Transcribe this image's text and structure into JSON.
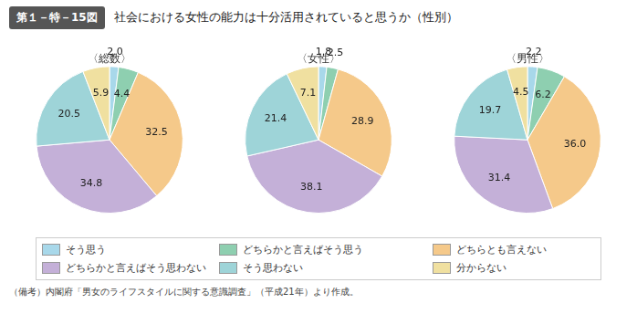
{
  "title": "第１－特－15図",
  "subtitle": "社会における女性の能力は十分活用されていると思うか（性別）",
  "annotations": [
    "（備考）内閣府「男女のライフスタイルに関する意識調査」（平成21年）より作成。"
  ],
  "legend": "bottom",
  "chart_data": [
    {
      "type": "pie",
      "title": "〈総数〉",
      "categories": [
        "そう思う",
        "どちらかと言えばそう思う",
        "どちらとも言えない",
        "どちらかと言えばそう思わない",
        "そう思わない",
        "分からない"
      ],
      "values": [
        2.0,
        4.4,
        32.5,
        34.8,
        20.5,
        5.9
      ],
      "value_labels": [
        "2.0",
        "4.4",
        "32.5",
        "34.8",
        "20.5",
        "5.9"
      ],
      "colors": [
        "#a8d8ea",
        "#8ecfb0",
        "#f5c98a",
        "#c4b0d8",
        "#9ed4d8",
        "#f0e0a0"
      ],
      "data_labels": true
    },
    {
      "type": "pie",
      "title": "〈女性〉",
      "categories": [
        "そう思う",
        "どちらかと言えばそう思う",
        "どちらとも言えない",
        "どちらかと言えばそう思わない",
        "そう思わない",
        "分からない"
      ],
      "values": [
        1.8,
        2.5,
        28.9,
        38.1,
        21.4,
        7.1
      ],
      "value_labels": [
        "1.8",
        "2.5",
        "28.9",
        "38.1",
        "21.4",
        "7.1"
      ],
      "colors": [
        "#a8d8ea",
        "#8ecfb0",
        "#f5c98a",
        "#c4b0d8",
        "#9ed4d8",
        "#f0e0a0"
      ],
      "data_labels": true
    },
    {
      "type": "pie",
      "title": "〈男性〉",
      "categories": [
        "そう思う",
        "どちらかと言えばそう思う",
        "どちらとも言えない",
        "どちらかと言えばそう思わない",
        "そう思わない",
        "分からない"
      ],
      "values": [
        2.2,
        6.2,
        36.0,
        31.4,
        19.7,
        4.5
      ],
      "value_labels": [
        "2.2",
        "6.2",
        "36.0",
        "31.4",
        "19.7",
        "4.5"
      ],
      "colors": [
        "#a8d8ea",
        "#8ecfb0",
        "#f5c98a",
        "#c4b0d8",
        "#9ed4d8",
        "#f0e0a0"
      ],
      "data_labels": true
    }
  ]
}
